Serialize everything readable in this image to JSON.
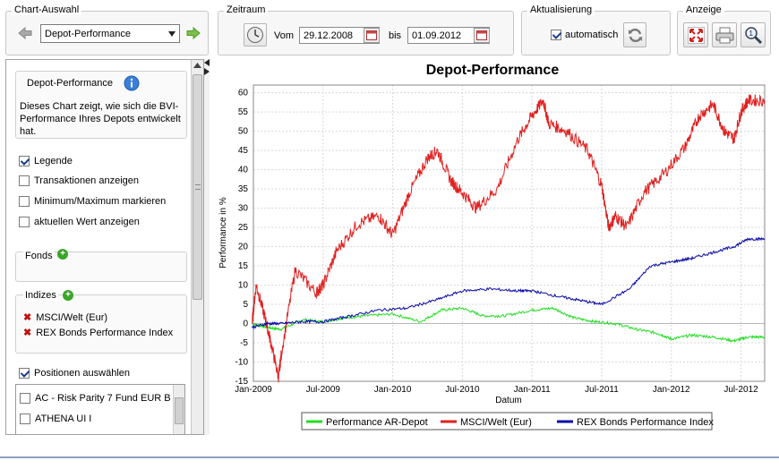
{
  "toolbar": {
    "chart_selection": {
      "title": "Chart-Auswahl",
      "selected": "Depot-Performance"
    },
    "period": {
      "title": "Zeitraum",
      "from_label": "Vom",
      "from_value": "29.12.2008",
      "to_label": "bis",
      "to_value": "01.09.2012"
    },
    "refresh": {
      "title": "Aktualisierung",
      "auto_label": "automatisch",
      "auto_checked": true
    },
    "view": {
      "title": "Anzeige"
    }
  },
  "sidebar": {
    "info": {
      "title": "Depot-Performance",
      "description": "Dieses Chart zeigt, wie sich die BVI-Performance Ihres Depots entwickelt hat."
    },
    "options": [
      {
        "label": "Legende",
        "checked": true
      },
      {
        "label": "Transaktionen anzeigen",
        "checked": false
      },
      {
        "label": "Minimum/Maximum markieren",
        "checked": false
      },
      {
        "label": "aktuellen Wert anzeigen",
        "checked": false
      }
    ],
    "fonds": {
      "title": "Fonds"
    },
    "indizes": {
      "title": "Indizes",
      "items": [
        "MSCI/Welt (Eur)",
        "REX Bonds Performance Index"
      ]
    },
    "positions": {
      "label": "Positionen auswählen",
      "checked": true,
      "items": [
        "AC - Risk Parity 7 Fund EUR B",
        "ATHENA UI I"
      ]
    }
  },
  "chart_data": {
    "type": "line",
    "title": "Depot-Performance",
    "xlabel": "Datum",
    "ylabel": "Performance in %",
    "ylim": [
      -15,
      62
    ],
    "xlim": [
      2009.0,
      2012.67
    ],
    "x_ticks": [
      "Jan-2009",
      "Jul-2009",
      "Jan-2010",
      "Jul-2010",
      "Jan-2011",
      "Jul-2011",
      "Jan-2012",
      "Jul-2012"
    ],
    "x_tick_values": [
      2009.0,
      2009.5,
      2010.0,
      2010.5,
      2011.0,
      2011.5,
      2012.0,
      2012.5
    ],
    "y_ticks": [
      60,
      55,
      50,
      45,
      40,
      35,
      30,
      25,
      20,
      15,
      10,
      5,
      0,
      -5,
      -10,
      -15
    ],
    "grid": true,
    "legend_position": "bottom",
    "series": [
      {
        "name": "Performance AR-Depot",
        "color": "#22dd22",
        "x": [
          2008.99,
          2009.1,
          2009.2,
          2009.35,
          2009.5,
          2009.65,
          2009.8,
          2010.0,
          2010.2,
          2010.35,
          2010.5,
          2010.65,
          2010.8,
          2011.0,
          2011.15,
          2011.3,
          2011.45,
          2011.6,
          2011.75,
          2011.9,
          2012.0,
          2012.15,
          2012.3,
          2012.45,
          2012.55,
          2012.67
        ],
        "y": [
          0,
          -1,
          -1.5,
          1,
          0.5,
          1.5,
          2,
          2.5,
          0.5,
          3.5,
          4,
          2,
          2,
          3.5,
          4,
          1.5,
          0.5,
          0,
          -1.5,
          -2.5,
          -4,
          -3,
          -3.5,
          -4.5,
          -3.5,
          -3.5
        ]
      },
      {
        "name": "MSCI/Welt (Eur)",
        "color": "#e02020",
        "x": [
          2008.99,
          2009.02,
          2009.08,
          2009.12,
          2009.18,
          2009.2,
          2009.3,
          2009.45,
          2009.5,
          2009.6,
          2009.75,
          2009.9,
          2010.0,
          2010.12,
          2010.25,
          2010.32,
          2010.42,
          2010.5,
          2010.6,
          2010.75,
          2010.9,
          2011.0,
          2011.08,
          2011.12,
          2011.25,
          2011.4,
          2011.5,
          2011.55,
          2011.6,
          2011.68,
          2011.8,
          2011.95,
          2012.1,
          2012.2,
          2012.3,
          2012.38,
          2012.45,
          2012.5,
          2012.55,
          2012.67
        ],
        "y": [
          0,
          10,
          2,
          -4,
          -14,
          -8,
          14,
          8,
          10,
          19,
          26,
          28,
          23,
          34,
          43,
          45,
          37,
          34,
          30,
          35,
          48,
          54,
          58,
          52,
          50,
          45,
          36,
          25,
          28,
          25,
          34,
          39,
          46,
          54,
          57,
          50,
          48,
          55,
          58,
          58
        ]
      },
      {
        "name": "REX Bonds Performance Index",
        "color": "#0a0aa8",
        "x": [
          2008.99,
          2009.1,
          2009.2,
          2009.35,
          2009.5,
          2009.7,
          2009.9,
          2010.1,
          2010.3,
          2010.5,
          2010.7,
          2010.9,
          2011.0,
          2011.2,
          2011.35,
          2011.5,
          2011.7,
          2011.85,
          2012.0,
          2012.15,
          2012.3,
          2012.45,
          2012.55,
          2012.67
        ],
        "y": [
          -1,
          0,
          0,
          0.5,
          0.5,
          2,
          3.5,
          4,
          6,
          8.5,
          9,
          8.5,
          8.5,
          7,
          6,
          5,
          9,
          15,
          16,
          17,
          18.5,
          20,
          22,
          22
        ]
      }
    ]
  }
}
